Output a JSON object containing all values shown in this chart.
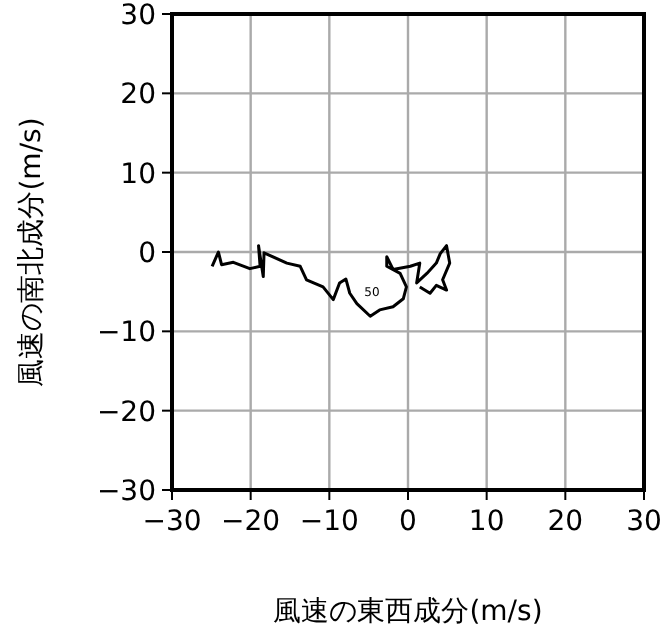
{
  "chart_data": {
    "type": "line",
    "xlabel": "風速の東西成分(m/s)",
    "ylabel": "風速の南北成分(m/s)",
    "xlim": [
      -30,
      30
    ],
    "ylim": [
      -30,
      30
    ],
    "xticks": [
      -30,
      -20,
      -10,
      0,
      10,
      20,
      30
    ],
    "yticks": [
      -30,
      -20,
      -10,
      0,
      10,
      20,
      30
    ],
    "grid": true,
    "x": [
      -24.9,
      -24.1,
      -23.7,
      -22.2,
      -20.1,
      -18.8,
      -19.0,
      -18.4,
      -18.3,
      -15.4,
      -13.7,
      -12.9,
      -10.8,
      -9.5,
      -8.7,
      -7.9,
      -7.4,
      -6.5,
      -4.8,
      -3.6,
      -1.9,
      -0.6,
      -0.2,
      -1.0,
      -2.7,
      -2.7,
      -1.9,
      0.3,
      1.5,
      1.1,
      2.4,
      3.6,
      4.1,
      4.9,
      5.3,
      4.4,
      4.9,
      3.6,
      2.8,
      1.5
    ],
    "series": [
      {
        "color": "#000000",
        "values": [
          -1.8,
          0.0,
          -1.6,
          -1.3,
          -2.1,
          -1.8,
          0.8,
          -3.1,
          -0.1,
          -1.4,
          -1.8,
          -3.5,
          -4.4,
          -6.0,
          -3.9,
          -3.4,
          -5.2,
          -6.5,
          -8.1,
          -7.3,
          -6.9,
          -5.9,
          -4.4,
          -2.7,
          -1.8,
          -0.6,
          -2.2,
          -1.8,
          -1.4,
          -3.9,
          -2.7,
          -1.4,
          -0.2,
          0.8,
          -1.4,
          -3.5,
          -4.8,
          -4.2,
          -5.2,
          -4.4
        ]
      }
    ],
    "annotations": [
      "50"
    ]
  }
}
